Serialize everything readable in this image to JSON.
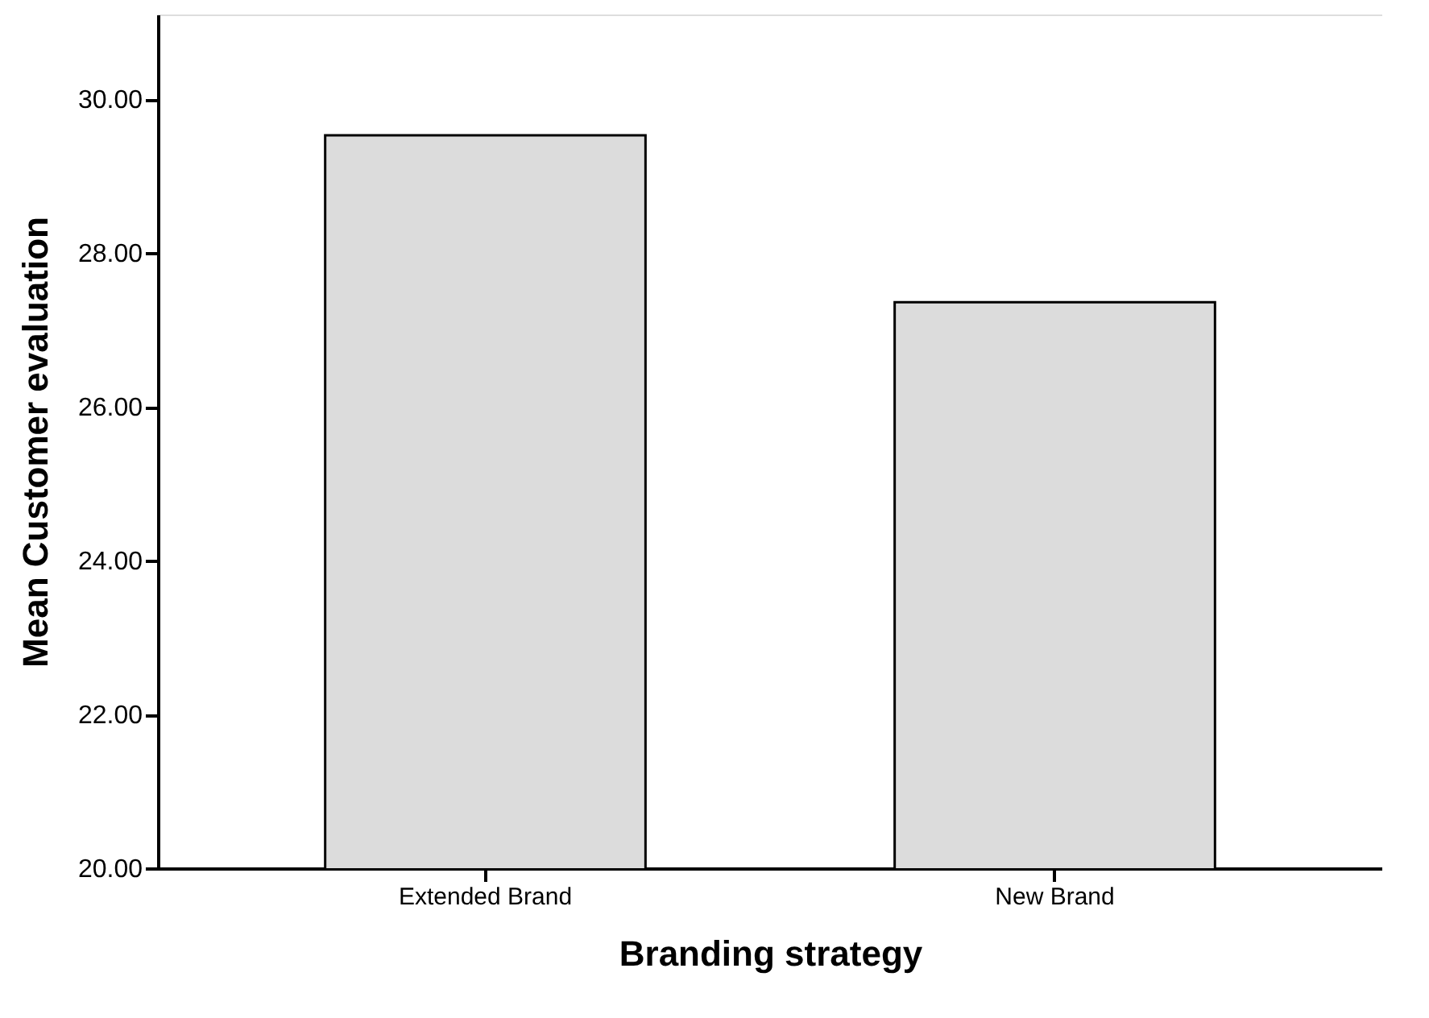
{
  "chart_data": {
    "type": "bar",
    "xlabel": "Branding strategy",
    "ylabel": "Mean Customer evaluation",
    "categories": [
      "Extended Brand",
      "New Brand"
    ],
    "values": [
      29.53,
      27.36
    ],
    "color": "#dcdcdc",
    "ylim": [
      20,
      31.1
    ],
    "yticks": [
      {
        "value": 20,
        "label": "20.00"
      },
      {
        "value": 22,
        "label": "22.00"
      },
      {
        "value": 24,
        "label": "24.00"
      },
      {
        "value": 26,
        "label": "26.00"
      },
      {
        "value": 28,
        "label": "28.00"
      },
      {
        "value": 30,
        "label": "30.00"
      }
    ],
    "grid": false
  }
}
